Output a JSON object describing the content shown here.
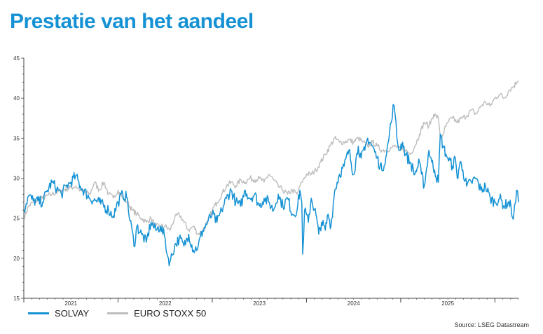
{
  "title": "Prestatie van het aandeel",
  "source": "Source: LSEG Datastream",
  "colors": {
    "solvay": "#1592d4",
    "stoxx": "#bdbdbd",
    "title": "#1592d4"
  },
  "legend": {
    "solvay": "SOLVAY",
    "stoxx": "EURO STOXX 50"
  },
  "chart_data": {
    "type": "line",
    "title": "Prestatie van het aandeel",
    "xlabel": "",
    "ylabel": "",
    "ylim": [
      15,
      45
    ],
    "yticks": [
      15,
      20,
      25,
      30,
      35,
      40,
      45
    ],
    "xlim": [
      2020.5,
      2025.75
    ],
    "xticks": [
      {
        "label": "2021",
        "x": 2021.0
      },
      {
        "label": "2022",
        "x": 2022.0
      },
      {
        "label": "2023",
        "x": 2023.0
      },
      {
        "label": "2024",
        "x": 2024.0
      },
      {
        "label": "2025",
        "x": 2025.0
      }
    ],
    "x_boundaries": [
      2020.5,
      2021.5,
      2022.5,
      2023.5,
      2024.5,
      2025.5
    ],
    "grid": false,
    "legend_position": "bottom-left",
    "series": [
      {
        "name": "SOLVAY",
        "points": [
          [
            2020.5,
            26.0
          ],
          [
            2020.55,
            27.8
          ],
          [
            2020.6,
            27.2
          ],
          [
            2020.7,
            27.0
          ],
          [
            2020.75,
            28.5
          ],
          [
            2020.8,
            29.5
          ],
          [
            2020.85,
            28.7
          ],
          [
            2020.9,
            28.0
          ],
          [
            2020.95,
            29.0
          ],
          [
            2021.0,
            29.5
          ],
          [
            2021.05,
            30.3
          ],
          [
            2021.1,
            29.0
          ],
          [
            2021.2,
            27.5
          ],
          [
            2021.3,
            27.0
          ],
          [
            2021.4,
            26.0
          ],
          [
            2021.45,
            25.3
          ],
          [
            2021.5,
            27.0
          ],
          [
            2021.55,
            28.0
          ],
          [
            2021.6,
            27.5
          ],
          [
            2021.62,
            25.0
          ],
          [
            2021.65,
            23.5
          ],
          [
            2021.67,
            21.5
          ],
          [
            2021.7,
            24.0
          ],
          [
            2021.75,
            23.0
          ],
          [
            2021.8,
            22.0
          ],
          [
            2021.85,
            24.5
          ],
          [
            2021.9,
            23.5
          ],
          [
            2021.95,
            24.0
          ],
          [
            2022.0,
            22.5
          ],
          [
            2022.02,
            20.5
          ],
          [
            2022.05,
            19.5
          ],
          [
            2022.1,
            21.5
          ],
          [
            2022.15,
            22.5
          ],
          [
            2022.2,
            21.5
          ],
          [
            2022.25,
            23.0
          ],
          [
            2022.3,
            21.0
          ],
          [
            2022.35,
            21.5
          ],
          [
            2022.4,
            23.5
          ],
          [
            2022.45,
            24.5
          ],
          [
            2022.5,
            25.5
          ],
          [
            2022.55,
            24.5
          ],
          [
            2022.6,
            26.0
          ],
          [
            2022.65,
            27.5
          ],
          [
            2022.7,
            28.5
          ],
          [
            2022.75,
            27.0
          ],
          [
            2022.8,
            26.5
          ],
          [
            2022.85,
            28.5
          ],
          [
            2022.9,
            27.5
          ],
          [
            2022.95,
            28.0
          ],
          [
            2023.0,
            26.5
          ],
          [
            2023.05,
            27.5
          ],
          [
            2023.1,
            27.0
          ],
          [
            2023.15,
            26.0
          ],
          [
            2023.2,
            28.0
          ],
          [
            2023.25,
            26.5
          ],
          [
            2023.3,
            27.5
          ],
          [
            2023.35,
            25.5
          ],
          [
            2023.4,
            26.0
          ],
          [
            2023.43,
            28.5
          ],
          [
            2023.45,
            27.0
          ],
          [
            2023.46,
            20.5
          ],
          [
            2023.48,
            26.0
          ],
          [
            2023.52,
            24.5
          ],
          [
            2023.55,
            27.5
          ],
          [
            2023.6,
            25.5
          ],
          [
            2023.63,
            23.0
          ],
          [
            2023.66,
            24.5
          ],
          [
            2023.7,
            23.5
          ],
          [
            2023.73,
            25.5
          ],
          [
            2023.76,
            24.0
          ],
          [
            2023.8,
            28.5
          ],
          [
            2023.85,
            30.5
          ],
          [
            2023.9,
            31.5
          ],
          [
            2023.95,
            33.5
          ],
          [
            2024.0,
            30.5
          ],
          [
            2024.05,
            34.0
          ],
          [
            2024.08,
            32.5
          ],
          [
            2024.12,
            33.5
          ],
          [
            2024.15,
            35.0
          ],
          [
            2024.2,
            34.0
          ],
          [
            2024.25,
            32.5
          ],
          [
            2024.3,
            31.0
          ],
          [
            2024.35,
            33.0
          ],
          [
            2024.38,
            35.5
          ],
          [
            2024.4,
            37.0
          ],
          [
            2024.42,
            39.2
          ],
          [
            2024.44,
            38.0
          ],
          [
            2024.46,
            35.0
          ],
          [
            2024.48,
            33.5
          ],
          [
            2024.52,
            34.5
          ],
          [
            2024.55,
            33.0
          ],
          [
            2024.6,
            32.0
          ],
          [
            2024.65,
            30.5
          ],
          [
            2024.7,
            32.0
          ],
          [
            2024.72,
            30.5
          ],
          [
            2024.75,
            29.0
          ],
          [
            2024.8,
            33.5
          ],
          [
            2024.83,
            32.0
          ],
          [
            2024.86,
            31.0
          ],
          [
            2024.9,
            29.5
          ],
          [
            2024.92,
            35.5
          ],
          [
            2024.95,
            34.0
          ],
          [
            2024.98,
            33.0
          ],
          [
            2025.0,
            32.5
          ],
          [
            2025.05,
            31.5
          ],
          [
            2025.08,
            32.5
          ],
          [
            2025.1,
            30.0
          ],
          [
            2025.13,
            32.0
          ],
          [
            2025.16,
            31.0
          ],
          [
            2025.2,
            29.0
          ],
          [
            2025.25,
            29.5
          ],
          [
            2025.3,
            30.0
          ],
          [
            2025.35,
            28.5
          ],
          [
            2025.4,
            29.0
          ],
          [
            2025.45,
            27.5
          ],
          [
            2025.5,
            27.0
          ],
          [
            2025.55,
            27.5
          ],
          [
            2025.6,
            26.5
          ],
          [
            2025.64,
            27.0
          ],
          [
            2025.67,
            26.5
          ],
          [
            2025.69,
            25.0
          ],
          [
            2025.7,
            25.5
          ],
          [
            2025.72,
            27.0
          ],
          [
            2025.73,
            28.5
          ],
          [
            2025.75,
            27.0
          ]
        ]
      },
      {
        "name": "EURO STOXX 50",
        "points": [
          [
            2020.5,
            25.0
          ],
          [
            2020.55,
            26.5
          ],
          [
            2020.6,
            27.0
          ],
          [
            2020.7,
            27.5
          ],
          [
            2020.8,
            28.0
          ],
          [
            2020.9,
            28.5
          ],
          [
            2021.0,
            28.8
          ],
          [
            2021.05,
            29.0
          ],
          [
            2021.1,
            28.5
          ],
          [
            2021.2,
            28.0
          ],
          [
            2021.25,
            29.5
          ],
          [
            2021.3,
            28.5
          ],
          [
            2021.35,
            29.5
          ],
          [
            2021.4,
            28.0
          ],
          [
            2021.45,
            27.5
          ],
          [
            2021.5,
            28.5
          ],
          [
            2021.55,
            27.5
          ],
          [
            2021.6,
            27.0
          ],
          [
            2021.65,
            26.0
          ],
          [
            2021.7,
            25.5
          ],
          [
            2021.75,
            25.0
          ],
          [
            2021.8,
            24.5
          ],
          [
            2021.85,
            25.0
          ],
          [
            2021.9,
            24.0
          ],
          [
            2022.0,
            24.0
          ],
          [
            2022.05,
            23.5
          ],
          [
            2022.1,
            25.0
          ],
          [
            2022.15,
            25.5
          ],
          [
            2022.2,
            24.5
          ],
          [
            2022.25,
            23.5
          ],
          [
            2022.3,
            24.0
          ],
          [
            2022.35,
            23.0
          ],
          [
            2022.4,
            23.5
          ],
          [
            2022.45,
            24.5
          ],
          [
            2022.5,
            26.0
          ],
          [
            2022.55,
            27.0
          ],
          [
            2022.6,
            28.0
          ],
          [
            2022.65,
            29.0
          ],
          [
            2022.7,
            29.5
          ],
          [
            2022.75,
            29.0
          ],
          [
            2022.8,
            29.8
          ],
          [
            2022.85,
            29.5
          ],
          [
            2022.9,
            30.0
          ],
          [
            2022.95,
            29.8
          ],
          [
            2023.0,
            30.0
          ],
          [
            2023.05,
            29.5
          ],
          [
            2023.1,
            30.5
          ],
          [
            2023.15,
            29.8
          ],
          [
            2023.2,
            29.0
          ],
          [
            2023.25,
            28.5
          ],
          [
            2023.3,
            28.0
          ],
          [
            2023.35,
            28.5
          ],
          [
            2023.4,
            28.0
          ],
          [
            2023.45,
            29.5
          ],
          [
            2023.5,
            30.5
          ],
          [
            2023.55,
            30.5
          ],
          [
            2023.6,
            31.0
          ],
          [
            2023.65,
            32.0
          ],
          [
            2023.7,
            33.0
          ],
          [
            2023.75,
            34.0
          ],
          [
            2023.8,
            35.0
          ],
          [
            2023.85,
            34.5
          ],
          [
            2023.9,
            34.5
          ],
          [
            2023.95,
            34.8
          ],
          [
            2024.0,
            34.5
          ],
          [
            2024.05,
            35.0
          ],
          [
            2024.1,
            34.5
          ],
          [
            2024.15,
            34.0
          ],
          [
            2024.2,
            34.5
          ],
          [
            2024.25,
            34.0
          ],
          [
            2024.3,
            33.5
          ],
          [
            2024.35,
            33.5
          ],
          [
            2024.4,
            33.8
          ],
          [
            2024.45,
            34.0
          ],
          [
            2024.5,
            33.5
          ],
          [
            2024.55,
            33.5
          ],
          [
            2024.6,
            33.0
          ],
          [
            2024.65,
            34.0
          ],
          [
            2024.7,
            35.5
          ],
          [
            2024.75,
            37.0
          ],
          [
            2024.8,
            36.5
          ],
          [
            2024.85,
            38.0
          ],
          [
            2024.9,
            37.5
          ],
          [
            2024.92,
            35.0
          ],
          [
            2024.95,
            35.5
          ],
          [
            2024.98,
            36.5
          ],
          [
            2025.0,
            37.0
          ],
          [
            2025.05,
            37.5
          ],
          [
            2025.1,
            37.0
          ],
          [
            2025.15,
            37.5
          ],
          [
            2025.2,
            37.8
          ],
          [
            2025.25,
            38.5
          ],
          [
            2025.3,
            38.0
          ],
          [
            2025.35,
            39.0
          ],
          [
            2025.4,
            39.5
          ],
          [
            2025.45,
            39.0
          ],
          [
            2025.5,
            40.0
          ],
          [
            2025.55,
            40.5
          ],
          [
            2025.6,
            40.0
          ],
          [
            2025.65,
            41.0
          ],
          [
            2025.7,
            41.5
          ],
          [
            2025.73,
            42.0
          ],
          [
            2025.75,
            42.2
          ]
        ]
      }
    ]
  }
}
